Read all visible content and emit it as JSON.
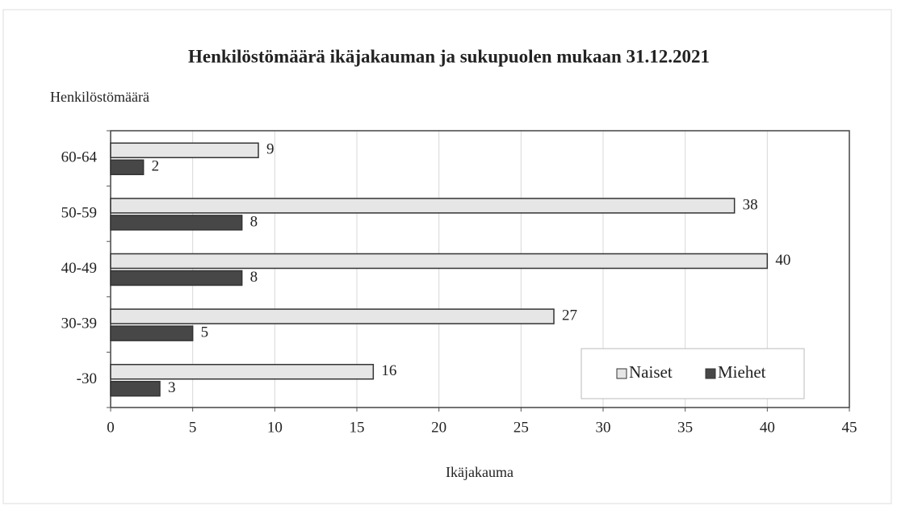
{
  "chart_data": {
    "type": "barh",
    "title": "Henkilöstömäärä ikäjakauman ja sukupuolen mukaan 31.12.2021",
    "y_label": "Henkilöstömäärä",
    "x_label": "Ikäjakauma",
    "categories": [
      "-30",
      "30-39",
      "40-49",
      "50-59",
      "60-64"
    ],
    "series": [
      {
        "name": "Naiset",
        "color": "#e6e6e6",
        "values": [
          16,
          27,
          40,
          38,
          9
        ]
      },
      {
        "name": "Miehet",
        "color": "#474747",
        "values": [
          3,
          5,
          8,
          8,
          2
        ]
      }
    ],
    "xlim": [
      0,
      45
    ],
    "xticks": [
      0,
      5,
      10,
      15,
      20,
      25,
      30,
      35,
      40,
      45
    ],
    "grid": true,
    "legend": "lower right"
  }
}
